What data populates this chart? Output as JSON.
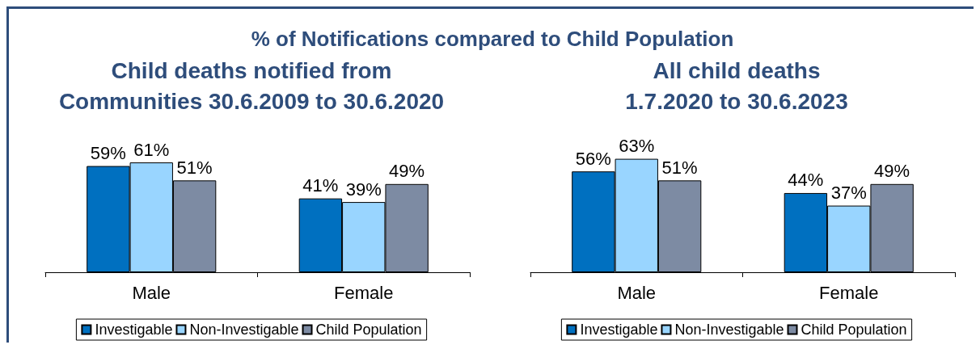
{
  "chart_data": [
    {
      "type": "bar",
      "title": "% of Notifications compared to Child Population",
      "subtitle": "Child deaths notified from\nCommunities 30.6.2009 to 30.6.2020",
      "categories": [
        "Male",
        "Female"
      ],
      "series": [
        {
          "name": "Investigable",
          "color": "#0070c0",
          "values": [
            59,
            41
          ],
          "value_labels": [
            "59%",
            "41%"
          ]
        },
        {
          "name": "Non-Investigable",
          "color": "#99d5ff",
          "values": [
            61,
            39
          ],
          "value_labels": [
            "61%",
            "39%"
          ]
        },
        {
          "name": "Child Population",
          "color": "#7d8ba3",
          "values": [
            51,
            49
          ],
          "value_labels": [
            "51%",
            "49%"
          ]
        }
      ],
      "tick_labels": "x",
      "legend": "bottom"
    },
    {
      "type": "bar",
      "subtitle": "All child deaths\n1.7.2020 to 30.6.2023",
      "categories": [
        "Male",
        "Female"
      ],
      "series": [
        {
          "name": "Investigable",
          "color": "#0070c0",
          "values": [
            56,
            44
          ],
          "value_labels": [
            "56%",
            "44%"
          ]
        },
        {
          "name": "Non-Investigable",
          "color": "#99d5ff",
          "values": [
            63,
            37
          ],
          "value_labels": [
            "63%",
            "37%"
          ]
        },
        {
          "name": "Child Population",
          "color": "#7d8ba3",
          "values": [
            51,
            49
          ],
          "value_labels": [
            "51%",
            "49%"
          ]
        }
      ],
      "tick_labels": "x",
      "legend": "bottom"
    }
  ]
}
